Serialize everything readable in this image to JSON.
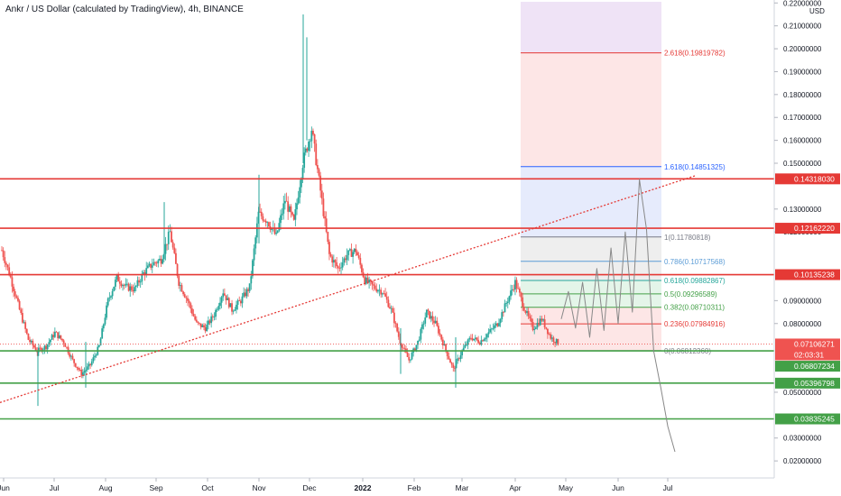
{
  "header": {
    "title": "Ankr / US Dollar (calculated by TradingView), 4h, BINANCE"
  },
  "axis": {
    "currency": "USD"
  },
  "countdown": "02:03:31",
  "colors": {
    "up": "#26a69a",
    "down": "#ef5350",
    "resistance": "#e53935",
    "support": "#43a047",
    "trendline": "#e53935",
    "last_price": "#ef5350",
    "fib_purple": "#efe3f6",
    "fib_red": "#fde6e6",
    "fib_blue": "#e6ebfc",
    "fib_grey": "#eeeeee",
    "fib_green": "#e4f5e9"
  },
  "chart_data": {
    "type": "candlestick",
    "title": "Ankr / US Dollar (calculated by TradingView), 4h, BINANCE",
    "ylabel": "USD",
    "ylim": [
      0.0165,
      0.2205
    ],
    "y_ticks": [
      "0.22000000",
      "0.21000000",
      "0.20000000",
      "0.19000000",
      "0.18000000",
      "0.17000000",
      "0.16000000",
      "0.15000000",
      "0.13000000",
      "0.12000000",
      "0.09000000",
      "0.08000000",
      "0.05000000",
      "0.03000000",
      "0.02000000"
    ],
    "x_ticks": [
      "Jun",
      "Jul",
      "Aug",
      "Sep",
      "Oct",
      "Nov",
      "Dec",
      "2022",
      "Feb",
      "Mar",
      "Apr",
      "May",
      "Jun",
      "Jul"
    ],
    "price_path": [
      [
        "Jun",
        0.112
      ],
      [
        "Jun",
        0.1
      ],
      [
        "Jun",
        0.086
      ],
      [
        "Jun",
        0.073
      ],
      [
        "Jun",
        0.068
      ],
      [
        "Jul",
        0.07
      ],
      [
        "Jul",
        0.076
      ],
      [
        "Jul",
        0.072
      ],
      [
        "Jul",
        0.064
      ],
      [
        "Jul",
        0.058
      ],
      [
        "Jul",
        0.062
      ],
      [
        "Aug",
        0.07
      ],
      [
        "Aug",
        0.09
      ],
      [
        "Aug",
        0.1
      ],
      [
        "Aug",
        0.096
      ],
      [
        "Aug",
        0.095
      ],
      [
        "Aug",
        0.102
      ],
      [
        "Sep",
        0.106
      ],
      [
        "Sep",
        0.108
      ],
      [
        "Sep",
        0.12
      ],
      [
        "Sep",
        0.098
      ],
      [
        "Sep",
        0.09
      ],
      [
        "Sep",
        0.08
      ],
      [
        "Oct",
        0.078
      ],
      [
        "Oct",
        0.084
      ],
      [
        "Oct",
        0.094
      ],
      [
        "Oct",
        0.086
      ],
      [
        "Oct",
        0.09
      ],
      [
        "Oct",
        0.096
      ],
      [
        "Nov",
        0.128
      ],
      [
        "Nov",
        0.125
      ],
      [
        "Nov",
        0.118
      ],
      [
        "Nov",
        0.134
      ],
      [
        "Nov",
        0.124
      ],
      [
        "Nov",
        0.15
      ],
      [
        "Dec",
        0.165
      ],
      [
        "Dec",
        0.138
      ],
      [
        "Dec",
        0.11
      ],
      [
        "Dec",
        0.104
      ],
      [
        "Dec",
        0.11
      ],
      [
        "Dec",
        0.112
      ],
      [
        "2022",
        0.099
      ],
      [
        "2022",
        0.096
      ],
      [
        "2022",
        0.094
      ],
      [
        "2022",
        0.086
      ],
      [
        "2022",
        0.072
      ],
      [
        "Feb",
        0.064
      ],
      [
        "Feb",
        0.072
      ],
      [
        "Feb",
        0.085
      ],
      [
        "Feb",
        0.08
      ],
      [
        "Feb",
        0.07
      ],
      [
        "Mar",
        0.06
      ],
      [
        "Mar",
        0.068
      ],
      [
        "Mar",
        0.074
      ],
      [
        "Mar",
        0.072
      ],
      [
        "Mar",
        0.076
      ],
      [
        "Mar",
        0.08
      ],
      [
        "Apr",
        0.089
      ],
      [
        "Apr",
        0.098
      ],
      [
        "Apr",
        0.087
      ],
      [
        "Apr",
        0.078
      ],
      [
        "Apr",
        0.082
      ],
      [
        "Apr",
        0.074
      ],
      [
        "Apr",
        0.0710627
      ]
    ],
    "horizontal_levels": [
      {
        "label": "0.14318030",
        "value": 0.1431803,
        "role": "resistance"
      },
      {
        "label": "0.12162220",
        "value": 0.1216222,
        "role": "resistance"
      },
      {
        "label": "0.10135238",
        "value": 0.10135238,
        "role": "resistance"
      },
      {
        "label": "0.06807234",
        "value": 0.06807234,
        "role": "support"
      },
      {
        "label": "0.05396798",
        "value": 0.05396798,
        "role": "support"
      },
      {
        "label": "0.03835245",
        "value": 0.03835245,
        "role": "support"
      }
    ],
    "last_price": {
      "label": "0.07106271",
      "value": 0.07106271
    },
    "fibonacci": [
      {
        "ratio": "2.618",
        "value": 0.19819782,
        "label": "2.618(0.19819782)"
      },
      {
        "ratio": "1.618",
        "value": 0.14851325,
        "label": "1.618(0.14851325)"
      },
      {
        "ratio": "1",
        "value": 0.11780818,
        "label": "1(0.11780818)"
      },
      {
        "ratio": "0.786",
        "value": 0.10717568,
        "label": "0.786(0.10717568)"
      },
      {
        "ratio": "0.618",
        "value": 0.09882867,
        "label": "0.618(0.09882867)"
      },
      {
        "ratio": "0.5",
        "value": 0.09296589,
        "label": "0.5(0.09296589)"
      },
      {
        "ratio": "0.382",
        "value": 0.08710311,
        "label": "0.382(0.08710311)"
      },
      {
        "ratio": "0.236",
        "value": 0.07984916,
        "label": "0.236(0.07984916)"
      },
      {
        "ratio": "0",
        "value": 0.0681236,
        "label": "0(0.06812360)"
      }
    ],
    "trendline": {
      "from": [
        "Jun",
        0.0455
      ],
      "to": [
        "Jul",
        0.1445
      ]
    },
    "projection_path": [
      [
        0.082,
        "Apr"
      ],
      [
        0.094,
        "Apr"
      ],
      [
        0.078,
        "Apr"
      ],
      [
        0.098,
        "May"
      ],
      [
        0.074,
        "May"
      ],
      [
        0.104,
        "May"
      ],
      [
        0.077,
        "May"
      ],
      [
        0.113,
        "May"
      ],
      [
        0.08,
        "May"
      ],
      [
        0.12,
        "Jun"
      ],
      [
        0.085,
        "Jun"
      ],
      [
        0.143,
        "Jun"
      ],
      [
        0.121,
        "Jun"
      ],
      [
        0.068,
        "Jun"
      ],
      [
        0.052,
        "Jun"
      ],
      [
        0.035,
        "Jul"
      ],
      [
        0.024,
        "Jul"
      ]
    ]
  }
}
